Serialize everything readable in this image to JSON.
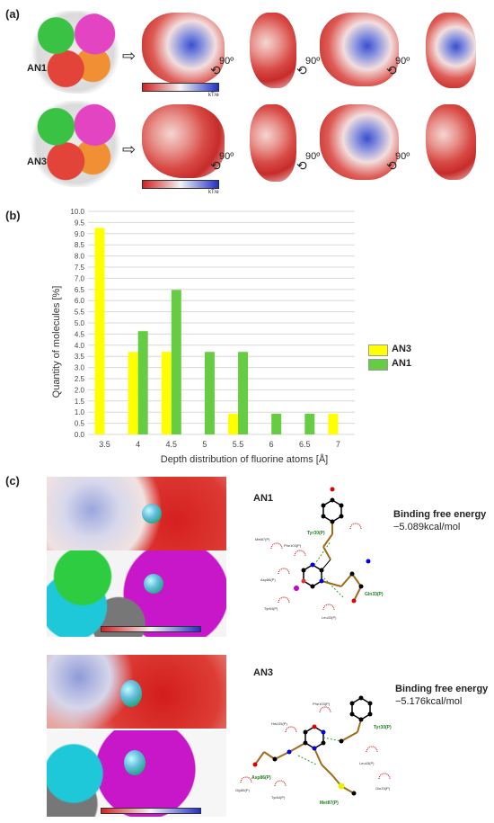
{
  "panels": {
    "a": {
      "label": "(a)",
      "rows": [
        {
          "name": "AN1",
          "rotation": "90º",
          "unit": "kT/e"
        },
        {
          "name": "AN3",
          "rotation": "90º",
          "unit": "kT/e"
        }
      ]
    },
    "b": {
      "label": "(b)"
    },
    "c": {
      "label": "(c)",
      "items": [
        {
          "name": "AN1",
          "energy_title": "Binding free energy",
          "energy_value": "−5.089kcal/mol",
          "residues": [
            "Tyr30(P)",
            "Met87(P)",
            "Phe103(P)",
            "Asp86(P)",
            "Gln33(P)",
            "Tyr84(P)",
            "Leu43(P)"
          ]
        },
        {
          "name": "AN3",
          "energy_title": "Binding free energy",
          "energy_value": "−5.176kcal/mol",
          "residues": [
            "Phe103(P)",
            "Tyr30(P)",
            "His105(P)",
            "Leu43(P)",
            "Asp86(P)",
            "Gly85(P)",
            "Tyr84(P)",
            "Met87(P)",
            "Gln33(P)"
          ]
        }
      ]
    }
  },
  "chart_data": {
    "type": "bar",
    "categories": [
      "3.5",
      "4",
      "4.5",
      "5",
      "5.5",
      "6",
      "6.5",
      "7"
    ],
    "series": [
      {
        "name": "AN3",
        "color": "#ffff00",
        "values": [
          9.26,
          3.7,
          3.7,
          0,
          0.93,
          0,
          0,
          0.93
        ]
      },
      {
        "name": "AN1",
        "color": "#66cc44",
        "values": [
          0,
          4.63,
          6.48,
          3.7,
          3.7,
          0.93,
          0.93,
          0
        ]
      }
    ],
    "xlabel": "Depth distribution of fluorine atoms [Å]",
    "ylabel": "Quantity of molecules [%]",
    "ylim": [
      0,
      10
    ],
    "yticks": [
      "0.0",
      "0.5",
      "1.0",
      "1.5",
      "2.0",
      "2.5",
      "3.0",
      "3.5",
      "4.0",
      "4.5",
      "5.0",
      "5.5",
      "6.0",
      "6.5",
      "7.0",
      "7.5",
      "8.0",
      "8.5",
      "9.0",
      "9.5",
      "10.0"
    ],
    "grid": true,
    "legend": "right"
  }
}
